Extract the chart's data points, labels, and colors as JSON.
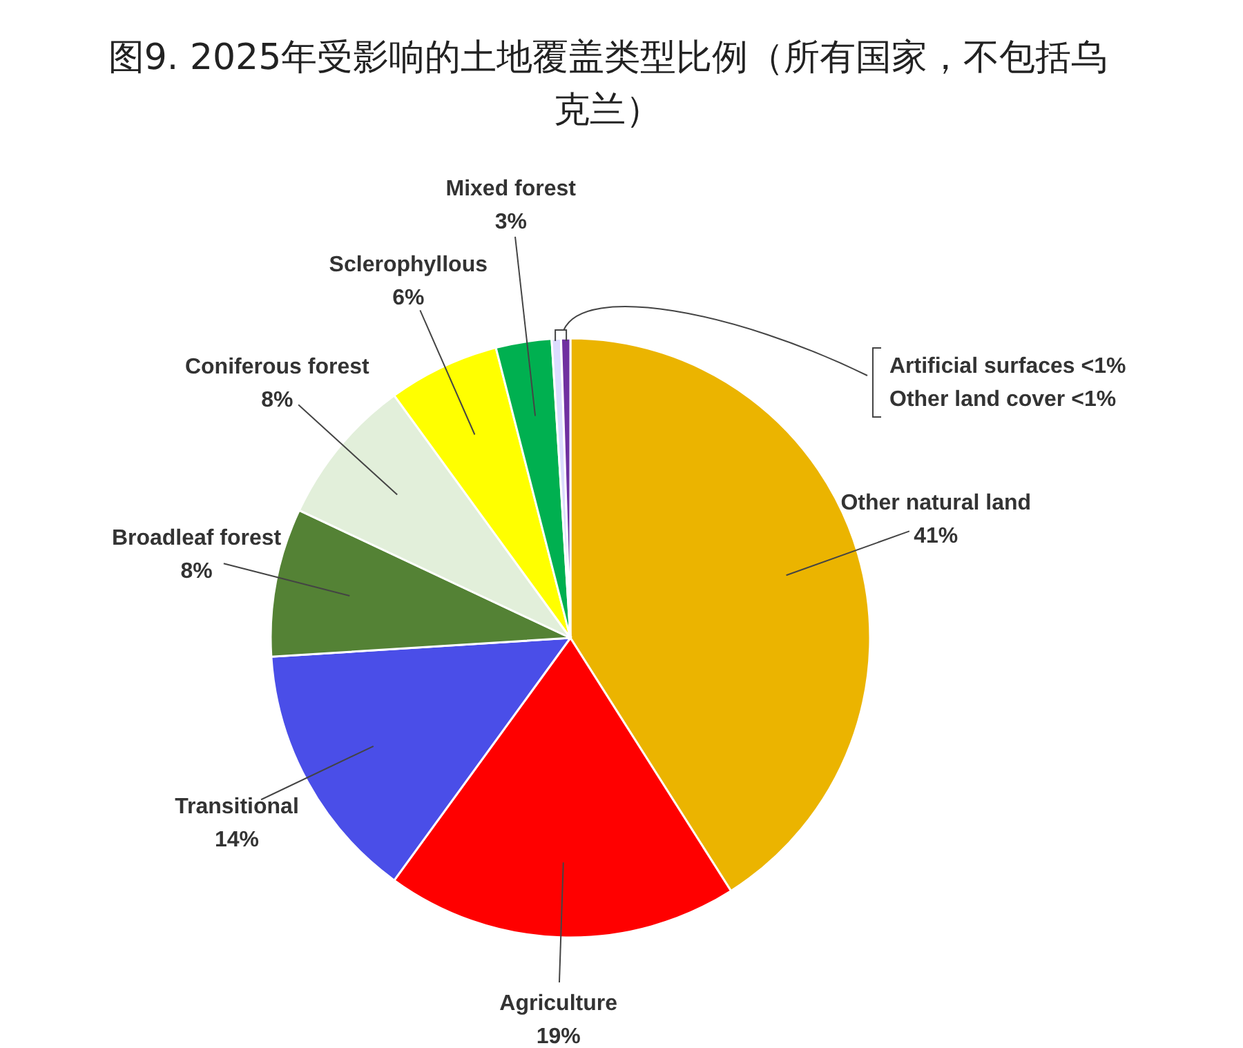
{
  "chart_data": {
    "type": "pie",
    "title": "图9. 2025年受影响的土地覆盖类型比例（所有国家，不包括乌克兰）",
    "categories": [
      "Other natural land",
      "Agriculture",
      "Transitional",
      "Broadleaf forest",
      "Coniferous forest",
      "Sclerophyllous",
      "Mixed forest",
      "Artificial surfaces",
      "Other land cover"
    ],
    "values": [
      41,
      19,
      14,
      8,
      8,
      6,
      3,
      0.5,
      0.5
    ],
    "value_labels": [
      "41%",
      "19%",
      "14%",
      "8%",
      "8%",
      "6%",
      "3%",
      "<1%",
      "<1%"
    ],
    "colors": [
      "#ebb400",
      "#ff0000",
      "#4a4ee8",
      "#548235",
      "#e2efda",
      "#ffff00",
      "#00b050",
      "#dcdcff",
      "#7030a0"
    ]
  }
}
